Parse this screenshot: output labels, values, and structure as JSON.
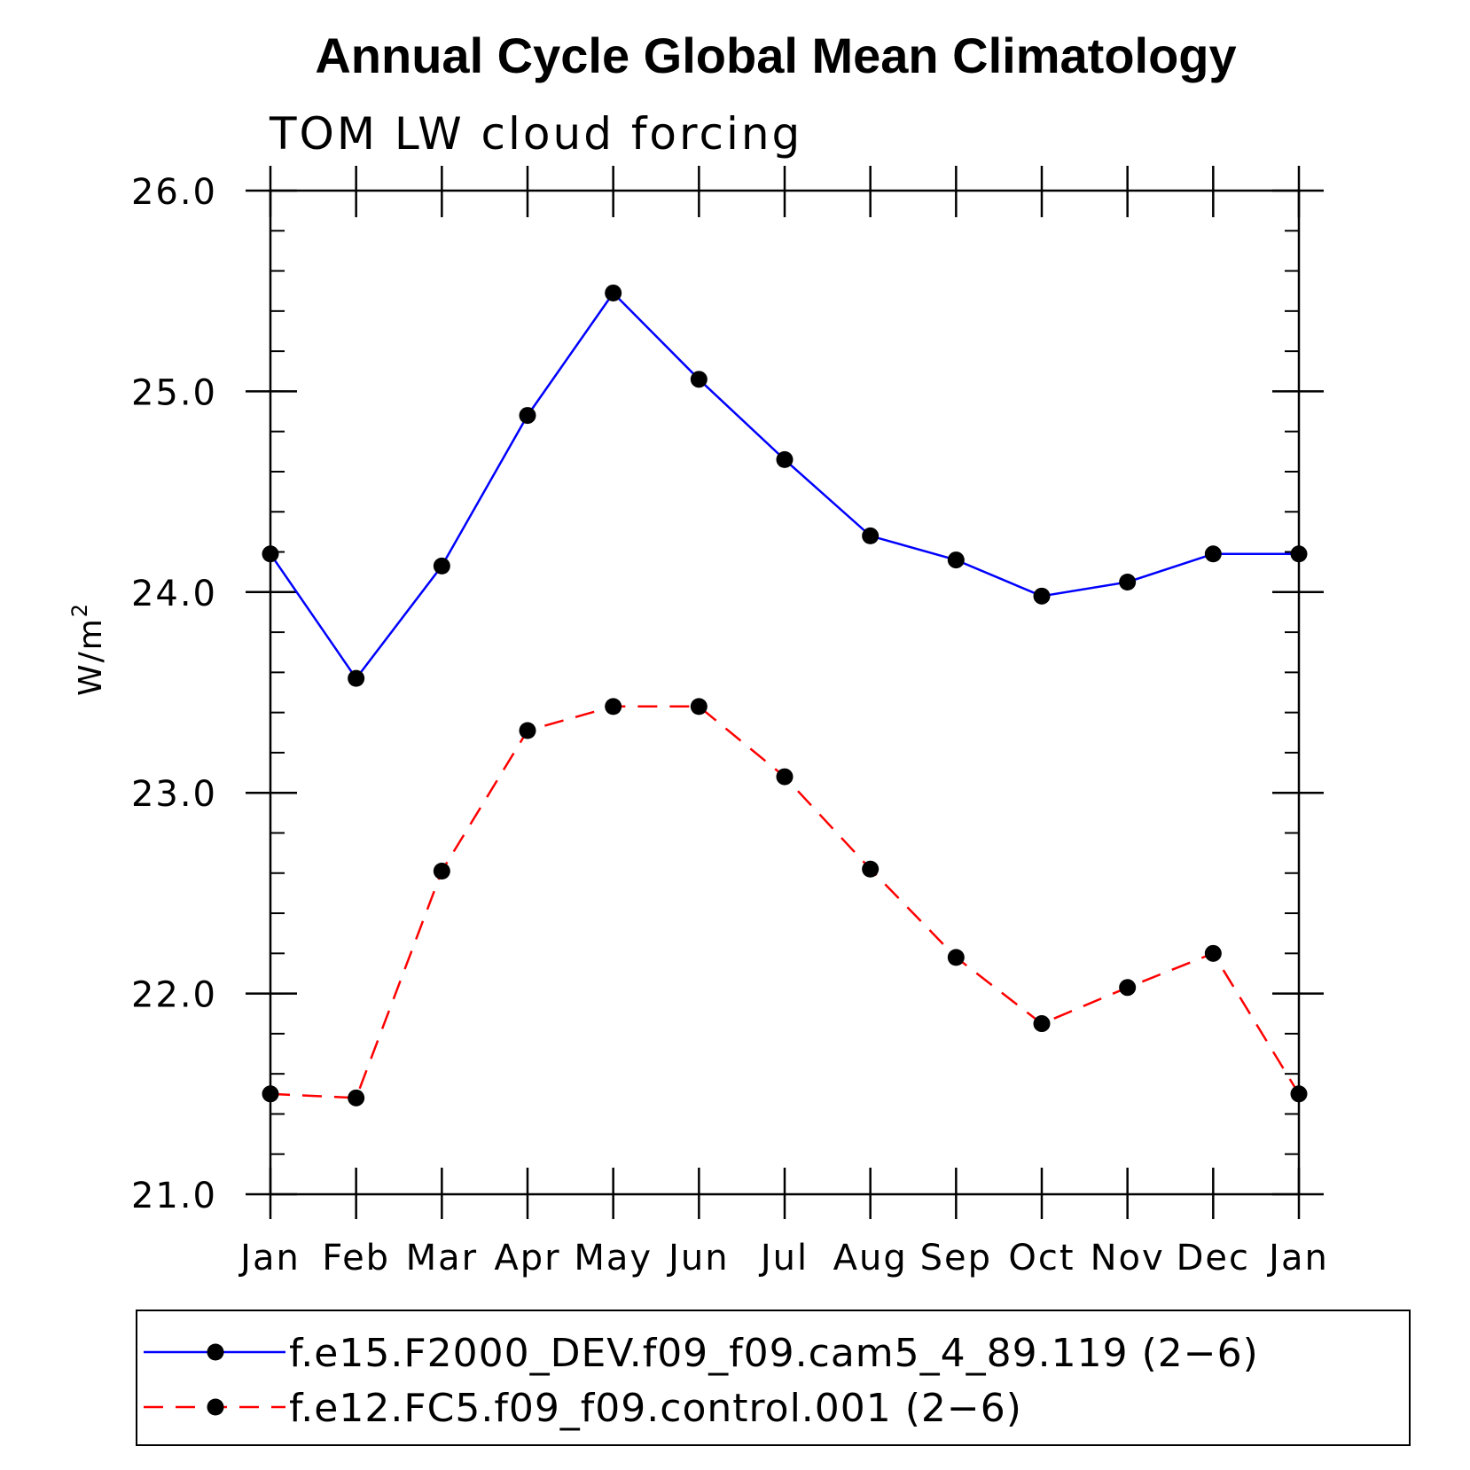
{
  "chart_data": {
    "type": "line",
    "title": "Annual Cycle Global Mean Climatology",
    "subtitle": "TOM LW cloud forcing",
    "xlabel": "",
    "ylabel": "W/m",
    "ylabel_superscript": "2",
    "categories": [
      "Jan",
      "Feb",
      "Mar",
      "Apr",
      "May",
      "Jun",
      "Jul",
      "Aug",
      "Sep",
      "Oct",
      "Nov",
      "Dec",
      "Jan"
    ],
    "ylim": [
      21.0,
      26.0
    ],
    "yticks": [
      21.0,
      22.0,
      23.0,
      24.0,
      25.0,
      26.0
    ],
    "ytick_labels": [
      "21.0",
      "22.0",
      "23.0",
      "24.0",
      "25.0",
      "26.0"
    ],
    "y_minor_step": 0.2,
    "grid": false,
    "legend_position": "bottom",
    "series": [
      {
        "name": "f.e15.F2000_DEV.f09_f09.cam5_4_89.119 (2−6)",
        "color": "#0000ff",
        "dash": "solid",
        "marker": "filled-circle",
        "values": [
          24.19,
          23.57,
          24.13,
          24.88,
          25.49,
          25.06,
          24.66,
          24.28,
          24.16,
          23.98,
          24.05,
          24.19,
          24.19
        ]
      },
      {
        "name": "f.e12.FC5.f09_f09.control.001 (2−6)",
        "color": "#ff0000",
        "dash": "dashed",
        "marker": "filled-circle",
        "values": [
          21.5,
          21.48,
          22.61,
          23.31,
          23.43,
          23.43,
          23.08,
          22.62,
          22.18,
          21.85,
          22.03,
          22.2,
          21.5
        ]
      }
    ]
  }
}
